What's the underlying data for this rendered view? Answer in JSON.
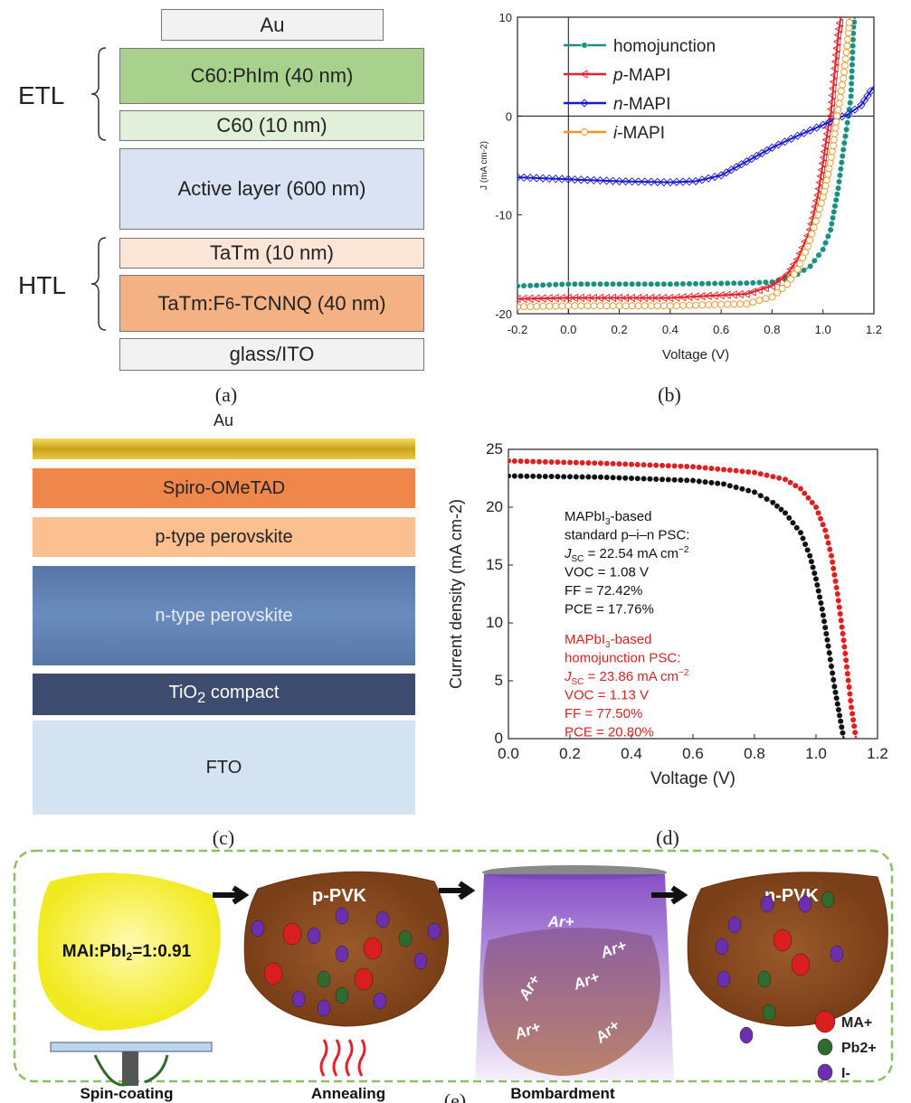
{
  "panel_a": {
    "label": "(a)",
    "layers": [
      "Au",
      "C60:PhIm (40 nm)",
      "C60 (10 nm)",
      "Active layer (600 nm)",
      "TaTm (10 nm)",
      "TaTm:F6-TCNNQ (40 nm)",
      "glass/ITO"
    ],
    "layer_colors": [
      "#f2f2f2",
      "#a9d18e",
      "#e2f0d9",
      "#dae3f3",
      "#fbe5d6",
      "#f4b183",
      "#f2f2f2"
    ],
    "groups": [
      "ETL",
      "HTL"
    ]
  },
  "panel_c": {
    "label": "(c)",
    "layers": [
      "Au",
      "Spiro-OMeTAD",
      "p-type perovskite",
      "n-type perovskite",
      "TiO2 compact",
      "FTO"
    ],
    "layer_colors": [
      "#d9b52a",
      "#f0874a",
      "#fbbf90",
      "#5b7fae",
      "#3c4b6e",
      "#d3e3f2"
    ]
  },
  "panel_e": {
    "label": "(e)",
    "steps": [
      "Spin-coating",
      "Annealing",
      "Bombardment"
    ],
    "precursor_label": "MAI:PbI2=1:0.91",
    "p_label": "p-PVK",
    "n_label": "n-PVK",
    "ion_label": "Ar+",
    "legend": [
      {
        "name": "MA+",
        "color": "#d81e1e"
      },
      {
        "name": "Pb2+",
        "color": "#2f6b2f"
      },
      {
        "name": "I-",
        "color": "#6b2fb0"
      }
    ]
  },
  "chart_data": [
    {
      "panel": "(b)",
      "type": "line",
      "xlabel": "Voltage (V)",
      "ylabel": "J (mA cm-2)",
      "xlim": [
        -0.2,
        1.2
      ],
      "ylim": [
        -20,
        10
      ],
      "xticks": [
        "-0.2",
        "0.0",
        "0.2",
        "0.4",
        "0.6",
        "0.8",
        "1.0",
        "1.2"
      ],
      "yticks": [
        "-20",
        "-10",
        "0",
        "10"
      ],
      "legend_position": "top-left",
      "series": [
        {
          "name": "homojunction",
          "color": "#1a9083",
          "marker": "filled-circle",
          "x": [
            -0.2,
            0,
            0.4,
            0.7,
            0.8,
            0.9,
            0.95,
            1.0,
            1.03,
            1.06,
            1.08,
            1.1,
            1.11,
            1.12,
            1.125
          ],
          "y": [
            -17.2,
            -17.0,
            -17.0,
            -16.9,
            -16.8,
            -16.0,
            -15.2,
            -13.5,
            -11.5,
            -7.3,
            -3.4,
            0,
            2,
            9,
            10
          ]
        },
        {
          "name": "p-MAPI",
          "color": "#e8202a",
          "marker": "open-triangle-left",
          "x": [
            -0.2,
            0,
            0.4,
            0.7,
            0.8,
            0.86,
            0.9,
            0.95,
            0.98,
            1.0,
            1.02,
            1.03,
            1.04,
            1.06,
            1.07
          ],
          "y": [
            -18.5,
            -18.4,
            -18.4,
            -18.0,
            -17.2,
            -16.0,
            -14.5,
            -11.5,
            -8.0,
            -4.8,
            -1.2,
            0,
            2.8,
            8.2,
            10
          ]
        },
        {
          "name": "n-MAPI",
          "color": "#1a1ad0",
          "marker": "open-diamond",
          "x": [
            -0.2,
            0,
            0.2,
            0.4,
            0.5,
            0.6,
            0.7,
            0.8,
            0.9,
            1.0,
            1.05,
            1.1,
            1.15,
            1.2
          ],
          "y": [
            -6.2,
            -6.4,
            -6.6,
            -6.7,
            -6.6,
            -6.0,
            -4.6,
            -3.2,
            -2.0,
            -0.9,
            -0.3,
            0.2,
            1.1,
            3.0
          ]
        },
        {
          "name": "i-MAPI",
          "color": "#f7931e",
          "marker": "open-circle",
          "x": [
            -0.2,
            0,
            0.4,
            0.7,
            0.8,
            0.86,
            0.9,
            0.94,
            0.98,
            1.0,
            1.02,
            1.04,
            1.055,
            1.08,
            1.1,
            1.105
          ],
          "y": [
            -19.3,
            -19.2,
            -19.2,
            -19.0,
            -18.3,
            -17.0,
            -15.5,
            -13.2,
            -10.0,
            -8.2,
            -5.9,
            -3.0,
            0,
            3.8,
            8.4,
            10
          ]
        }
      ]
    },
    {
      "panel": "(d)",
      "type": "line",
      "xlabel": "Voltage (V)",
      "ylabel": "Current density (mA cm-2)",
      "xlim": [
        0,
        1.2
      ],
      "ylim": [
        0,
        25
      ],
      "xticks": [
        "0.0",
        "0.2",
        "0.4",
        "0.6",
        "0.8",
        "1.0",
        "1.2"
      ],
      "yticks": [
        "0",
        "5",
        "10",
        "15",
        "20",
        "25"
      ],
      "series": [
        {
          "color": "#111111",
          "x": [
            0,
            0.3,
            0.6,
            0.7,
            0.8,
            0.86,
            0.9,
            0.95,
            0.98,
            1.0,
            1.02,
            1.04,
            1.06,
            1.08,
            1.09
          ],
          "y": [
            22.7,
            22.6,
            22.3,
            22.0,
            21.3,
            20.4,
            19.5,
            17.8,
            15.8,
            13.8,
            11.2,
            8.0,
            4.5,
            1.5,
            0
          ]
        },
        {
          "color": "#e02020",
          "x": [
            0,
            0.3,
            0.6,
            0.8,
            0.9,
            0.95,
            1.0,
            1.03,
            1.05,
            1.07,
            1.09,
            1.1,
            1.115,
            1.13
          ],
          "y": [
            24.0,
            23.8,
            23.5,
            23.0,
            22.4,
            21.6,
            20.0,
            18.0,
            15.8,
            12.5,
            8.5,
            6.2,
            2.7,
            0
          ]
        }
      ],
      "annotations": [
        {
          "color": "#111111",
          "lines": [
            "MAPbI3-based",
            "standard p–i–n PSC:",
            "JSC = 22.54 mA cm−2",
            "VOC = 1.08 V",
            "FF = 72.42%",
            "PCE = 17.76%"
          ]
        },
        {
          "color": "#e02020",
          "lines": [
            "MAPbI3-based",
            "homojunction PSC:",
            "JSC = 23.86 mA cm−2",
            "VOC = 1.13 V",
            "FF = 77.50%",
            "PCE = 20.80%"
          ]
        }
      ]
    }
  ]
}
